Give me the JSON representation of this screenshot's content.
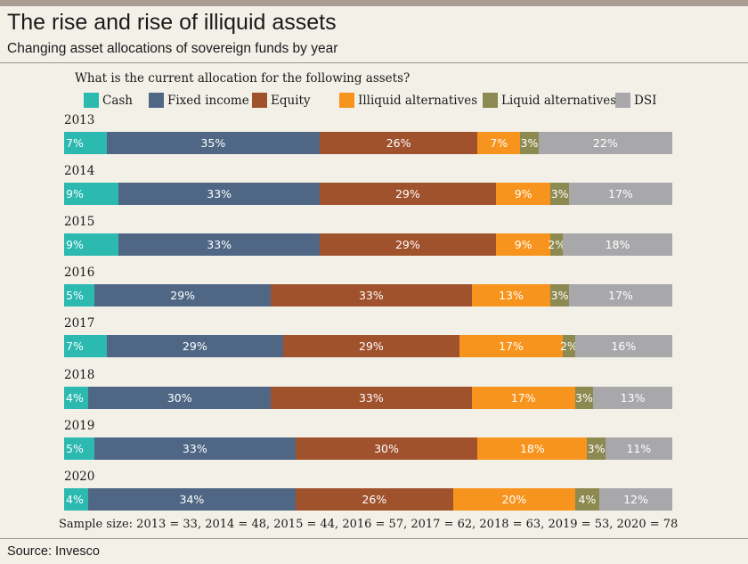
{
  "header": {
    "title": "The rise and rise of illiquid assets",
    "subtitle": "Changing asset allocations of sovereign funds by year"
  },
  "footer": {
    "sample": "Sample size: 2013 = 33, 2014 = 48, 2015 = 44, 2016 = 57, 2017 = 62, 2018 = 63, 2019 = 53, 2020 = 78",
    "source": "Source: Invesco"
  },
  "chart_data": {
    "type": "bar",
    "orientation": "horizontal",
    "stacked": true,
    "normalized_percent": true,
    "title": "What is the current allocation for the following assets?",
    "legend_position": "top",
    "grid": false,
    "categories": [
      "2013",
      "2014",
      "2015",
      "2016",
      "2017",
      "2018",
      "2019",
      "2020"
    ],
    "series": [
      {
        "name": "Cash",
        "color": "#2bb9b0",
        "values": [
          7,
          9,
          9,
          5,
          7,
          4,
          5,
          4
        ]
      },
      {
        "name": "Fixed income",
        "color": "#4f6785",
        "values": [
          35,
          33,
          33,
          29,
          29,
          30,
          33,
          34
        ]
      },
      {
        "name": "Equity",
        "color": "#a0522d",
        "values": [
          26,
          29,
          29,
          33,
          29,
          33,
          30,
          26
        ]
      },
      {
        "name": "Illiquid alternatives",
        "color": "#f7941d",
        "values": [
          7,
          9,
          9,
          13,
          17,
          17,
          18,
          20
        ]
      },
      {
        "name": "Liquid alternatives",
        "color": "#8c8a50",
        "values": [
          3,
          3,
          2,
          3,
          2,
          3,
          3,
          4
        ]
      },
      {
        "name": "DSI",
        "color": "#a8a8ab",
        "values": [
          22,
          17,
          18,
          17,
          16,
          13,
          11,
          12
        ]
      }
    ]
  }
}
